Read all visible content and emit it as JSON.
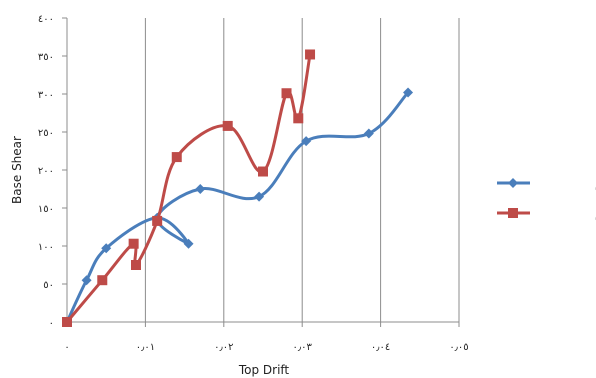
{
  "chart_data": {
    "type": "line",
    "xlabel": "Top Drift",
    "ylabel": "Base Shear",
    "xlim": [
      0,
      0.05
    ],
    "ylim": [
      0,
      400
    ],
    "x_ticks": [
      0,
      0.01,
      0.02,
      0.03,
      0.04,
      0.05
    ],
    "y_ticks": [
      0,
      50,
      100,
      150,
      200,
      250,
      300,
      350,
      400
    ],
    "x_tick_labels": [
      "٠",
      "٠٫٠١",
      "٠٫٠٢",
      "٠٫٠٣",
      "٠٫٠٤",
      "٠٫٠٥"
    ],
    "y_tick_labels": [
      "٠",
      "٥٠",
      "١٠٠",
      "١٥٠",
      "٢٠٠",
      "٢٥٠",
      "٣٠٠",
      "٣٥٠",
      "٤٠٠"
    ],
    "grid": "vertical",
    "legend_position": "right",
    "series": [
      {
        "name": "سازه منظم",
        "color": "#4a7ebb",
        "marker": "diamond",
        "x": [
          0,
          0.0025,
          0.005,
          0.0115,
          0.0155,
          0.0115,
          0.017,
          0.0245,
          0.0305,
          0.0385,
          0.0435
        ],
        "y": [
          0,
          55,
          97,
          137,
          103,
          137,
          175,
          165,
          238,
          248,
          302
        ]
      },
      {
        "name": "سازه نامنظم",
        "color": "#be4b48",
        "marker": "square",
        "x": [
          0,
          0.0045,
          0.0085,
          0.0088,
          0.0115,
          0.014,
          0.0205,
          0.025,
          0.028,
          0.0295,
          0.031
        ],
        "y": [
          0,
          55,
          103,
          75,
          133,
          217,
          258,
          198,
          301,
          268,
          352
        ]
      }
    ]
  }
}
